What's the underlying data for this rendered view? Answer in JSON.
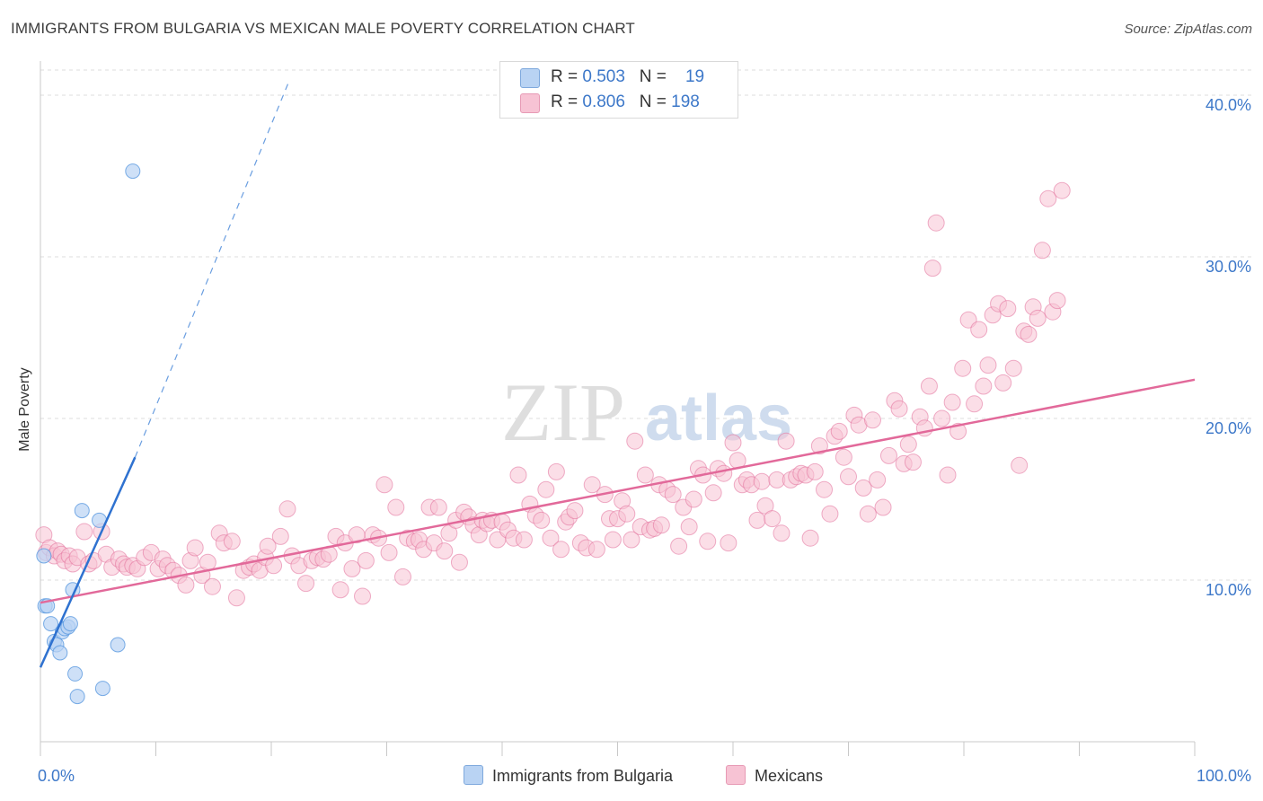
{
  "title": "IMMIGRANTS FROM BULGARIA VS MEXICAN MALE POVERTY CORRELATION CHART",
  "source": "Source: ZipAtlas.com",
  "watermark": {
    "zip": "ZIP",
    "atlas": "atlas"
  },
  "legend_top": {
    "rows": [
      {
        "r_label": "R = ",
        "r_value": "0.503",
        "n_label": "N = ",
        "n_value": "19",
        "color": "#a9c8f0"
      },
      {
        "r_label": "R = ",
        "r_value": "0.806",
        "n_label": "N = ",
        "n_value": "198",
        "color": "#f7b8cc"
      }
    ]
  },
  "chart_data": {
    "type": "scatter",
    "title": "IMMIGRANTS FROM BULGARIA VS MEXICAN MALE POVERTY CORRELATION CHART",
    "xlabel": "",
    "ylabel": "Male Poverty",
    "xlim": [
      0,
      100
    ],
    "ylim": [
      0,
      42
    ],
    "x_tick_labels": [
      "0.0%",
      "100.0%"
    ],
    "y_ticks": [
      10,
      20,
      30,
      40
    ],
    "y_tick_labels": [
      "10.0%",
      "20.0%",
      "30.0%",
      "40.0%"
    ],
    "grid": true,
    "legend_placement": "bottom-center",
    "series": [
      {
        "name": "Immigrants from Bulgaria",
        "color": "#5b9ae0",
        "fill": "#b9d3f3",
        "R": 0.503,
        "N": 19,
        "trend": {
          "x0": 0.0,
          "y0": 4.6,
          "x1": 8.2,
          "y1": 17.6,
          "dash_to_x": 21.5,
          "dash_to_y": 40.8
        },
        "points": [
          [
            8.0,
            35.3
          ],
          [
            0.4,
            8.4
          ],
          [
            0.6,
            8.4
          ],
          [
            0.9,
            7.3
          ],
          [
            1.2,
            6.2
          ],
          [
            1.4,
            6.0
          ],
          [
            1.7,
            5.5
          ],
          [
            1.9,
            6.8
          ],
          [
            2.1,
            7.0
          ],
          [
            2.4,
            7.1
          ],
          [
            2.6,
            7.3
          ],
          [
            2.8,
            9.4
          ],
          [
            3.0,
            4.2
          ],
          [
            3.2,
            2.8
          ],
          [
            3.6,
            14.3
          ],
          [
            5.1,
            13.7
          ],
          [
            5.4,
            3.3
          ],
          [
            6.7,
            6.0
          ],
          [
            0.3,
            11.5
          ]
        ]
      },
      {
        "name": "Mexicans",
        "color": "#e26f9a",
        "fill": "#f7c3d4",
        "R": 0.806,
        "N": 198,
        "trend": {
          "x0": 0.0,
          "y0": 8.6,
          "x1": 100.0,
          "y1": 22.4
        },
        "points": [
          [
            0.3,
            12.8
          ],
          [
            0.5,
            11.7
          ],
          [
            0.8,
            12.0
          ],
          [
            1.2,
            11.5
          ],
          [
            1.5,
            11.8
          ],
          [
            1.8,
            11.6
          ],
          [
            2.1,
            11.2
          ],
          [
            2.5,
            11.5
          ],
          [
            2.8,
            11.0
          ],
          [
            3.2,
            11.4
          ],
          [
            3.8,
            13.0
          ],
          [
            4.2,
            11.0
          ],
          [
            4.6,
            11.2
          ],
          [
            5.3,
            13.0
          ],
          [
            5.7,
            11.6
          ],
          [
            6.2,
            10.8
          ],
          [
            6.8,
            11.3
          ],
          [
            7.2,
            11.0
          ],
          [
            7.5,
            10.8
          ],
          [
            8.0,
            10.9
          ],
          [
            8.4,
            10.7
          ],
          [
            9.0,
            11.4
          ],
          [
            9.6,
            11.7
          ],
          [
            10.2,
            10.7
          ],
          [
            10.6,
            11.3
          ],
          [
            11.0,
            10.9
          ],
          [
            11.5,
            10.6
          ],
          [
            12.0,
            10.3
          ],
          [
            12.6,
            9.7
          ],
          [
            13.0,
            11.2
          ],
          [
            13.4,
            12.0
          ],
          [
            14.0,
            10.3
          ],
          [
            14.5,
            11.1
          ],
          [
            14.9,
            9.6
          ],
          [
            15.5,
            12.9
          ],
          [
            15.9,
            12.3
          ],
          [
            16.6,
            12.4
          ],
          [
            17.0,
            8.9
          ],
          [
            17.6,
            10.6
          ],
          [
            18.1,
            10.8
          ],
          [
            18.5,
            11.0
          ],
          [
            19.0,
            10.6
          ],
          [
            19.5,
            11.4
          ],
          [
            19.7,
            12.1
          ],
          [
            20.2,
            10.9
          ],
          [
            20.8,
            12.7
          ],
          [
            21.4,
            14.4
          ],
          [
            21.8,
            11.5
          ],
          [
            22.4,
            10.9
          ],
          [
            23.0,
            9.8
          ],
          [
            23.5,
            11.2
          ],
          [
            24.0,
            11.4
          ],
          [
            24.5,
            11.3
          ],
          [
            25.0,
            11.6
          ],
          [
            25.6,
            12.7
          ],
          [
            26.0,
            9.4
          ],
          [
            26.4,
            12.3
          ],
          [
            27.0,
            10.7
          ],
          [
            27.4,
            12.8
          ],
          [
            27.9,
            9.0
          ],
          [
            28.2,
            11.2
          ],
          [
            28.8,
            12.8
          ],
          [
            29.3,
            12.6
          ],
          [
            29.8,
            15.9
          ],
          [
            30.2,
            11.7
          ],
          [
            30.8,
            14.5
          ],
          [
            31.4,
            10.2
          ],
          [
            31.8,
            12.6
          ],
          [
            32.4,
            12.4
          ],
          [
            32.8,
            12.5
          ],
          [
            33.2,
            11.9
          ],
          [
            33.7,
            14.5
          ],
          [
            34.1,
            12.3
          ],
          [
            34.5,
            14.5
          ],
          [
            35.0,
            11.8
          ],
          [
            35.4,
            12.9
          ],
          [
            36.0,
            13.7
          ],
          [
            36.3,
            11.1
          ],
          [
            36.7,
            14.2
          ],
          [
            37.1,
            13.9
          ],
          [
            37.5,
            13.4
          ],
          [
            38.0,
            12.8
          ],
          [
            38.3,
            13.7
          ],
          [
            38.7,
            13.5
          ],
          [
            39.1,
            13.7
          ],
          [
            39.6,
            12.5
          ],
          [
            40.0,
            13.6
          ],
          [
            40.5,
            13.1
          ],
          [
            41.0,
            12.6
          ],
          [
            41.4,
            16.5
          ],
          [
            41.9,
            12.5
          ],
          [
            42.4,
            14.7
          ],
          [
            42.9,
            14.0
          ],
          [
            43.4,
            13.7
          ],
          [
            43.8,
            15.6
          ],
          [
            44.2,
            12.6
          ],
          [
            44.7,
            16.7
          ],
          [
            45.1,
            11.9
          ],
          [
            45.5,
            13.6
          ],
          [
            45.8,
            13.9
          ],
          [
            46.3,
            14.3
          ],
          [
            46.8,
            12.3
          ],
          [
            47.3,
            12.0
          ],
          [
            47.8,
            15.9
          ],
          [
            48.2,
            11.9
          ],
          [
            48.9,
            15.3
          ],
          [
            49.3,
            13.8
          ],
          [
            49.6,
            12.5
          ],
          [
            50.0,
            13.8
          ],
          [
            50.4,
            14.9
          ],
          [
            50.8,
            14.1
          ],
          [
            51.2,
            12.5
          ],
          [
            51.5,
            18.6
          ],
          [
            52.0,
            13.3
          ],
          [
            52.4,
            16.5
          ],
          [
            52.8,
            13.1
          ],
          [
            53.2,
            13.2
          ],
          [
            53.6,
            15.9
          ],
          [
            53.8,
            13.4
          ],
          [
            54.3,
            15.6
          ],
          [
            54.8,
            15.3
          ],
          [
            55.3,
            12.1
          ],
          [
            55.7,
            14.5
          ],
          [
            56.2,
            13.3
          ],
          [
            56.6,
            15.0
          ],
          [
            57.0,
            16.9
          ],
          [
            57.4,
            16.5
          ],
          [
            57.8,
            12.4
          ],
          [
            58.3,
            15.4
          ],
          [
            58.7,
            16.9
          ],
          [
            59.2,
            16.6
          ],
          [
            59.6,
            12.3
          ],
          [
            60.0,
            18.5
          ],
          [
            60.4,
            17.4
          ],
          [
            60.8,
            15.9
          ],
          [
            61.2,
            16.2
          ],
          [
            61.6,
            15.9
          ],
          [
            62.1,
            13.7
          ],
          [
            62.5,
            16.1
          ],
          [
            62.8,
            14.6
          ],
          [
            63.4,
            13.8
          ],
          [
            63.8,
            16.2
          ],
          [
            64.2,
            12.9
          ],
          [
            64.6,
            18.6
          ],
          [
            65.0,
            16.2
          ],
          [
            65.5,
            16.4
          ],
          [
            65.9,
            16.6
          ],
          [
            66.3,
            16.5
          ],
          [
            66.7,
            12.6
          ],
          [
            67.1,
            16.7
          ],
          [
            67.5,
            18.3
          ],
          [
            67.9,
            15.6
          ],
          [
            68.4,
            14.1
          ],
          [
            68.8,
            18.9
          ],
          [
            69.2,
            19.2
          ],
          [
            69.6,
            17.6
          ],
          [
            70.0,
            16.4
          ],
          [
            70.5,
            20.2
          ],
          [
            70.9,
            19.6
          ],
          [
            71.3,
            15.7
          ],
          [
            71.7,
            14.1
          ],
          [
            72.1,
            19.9
          ],
          [
            72.5,
            16.2
          ],
          [
            73.0,
            14.5
          ],
          [
            73.5,
            17.7
          ],
          [
            74.0,
            21.1
          ],
          [
            74.4,
            20.6
          ],
          [
            74.8,
            17.2
          ],
          [
            75.2,
            18.4
          ],
          [
            75.6,
            17.3
          ],
          [
            76.2,
            20.1
          ],
          [
            76.6,
            19.4
          ],
          [
            77.0,
            22.0
          ],
          [
            77.3,
            29.3
          ],
          [
            77.6,
            32.1
          ],
          [
            78.1,
            20.0
          ],
          [
            78.6,
            16.5
          ],
          [
            79.0,
            21.0
          ],
          [
            79.5,
            19.2
          ],
          [
            79.9,
            23.1
          ],
          [
            80.4,
            26.1
          ],
          [
            80.9,
            20.9
          ],
          [
            81.3,
            25.5
          ],
          [
            81.7,
            22.0
          ],
          [
            82.1,
            23.3
          ],
          [
            82.5,
            26.4
          ],
          [
            83.0,
            27.1
          ],
          [
            83.4,
            22.2
          ],
          [
            83.8,
            26.8
          ],
          [
            84.3,
            23.1
          ],
          [
            84.8,
            17.1
          ],
          [
            85.2,
            25.4
          ],
          [
            85.6,
            25.2
          ],
          [
            86.0,
            26.9
          ],
          [
            86.4,
            26.2
          ],
          [
            86.8,
            30.4
          ],
          [
            87.3,
            33.6
          ],
          [
            87.7,
            26.6
          ],
          [
            88.1,
            27.3
          ],
          [
            88.5,
            34.1
          ]
        ]
      }
    ]
  }
}
